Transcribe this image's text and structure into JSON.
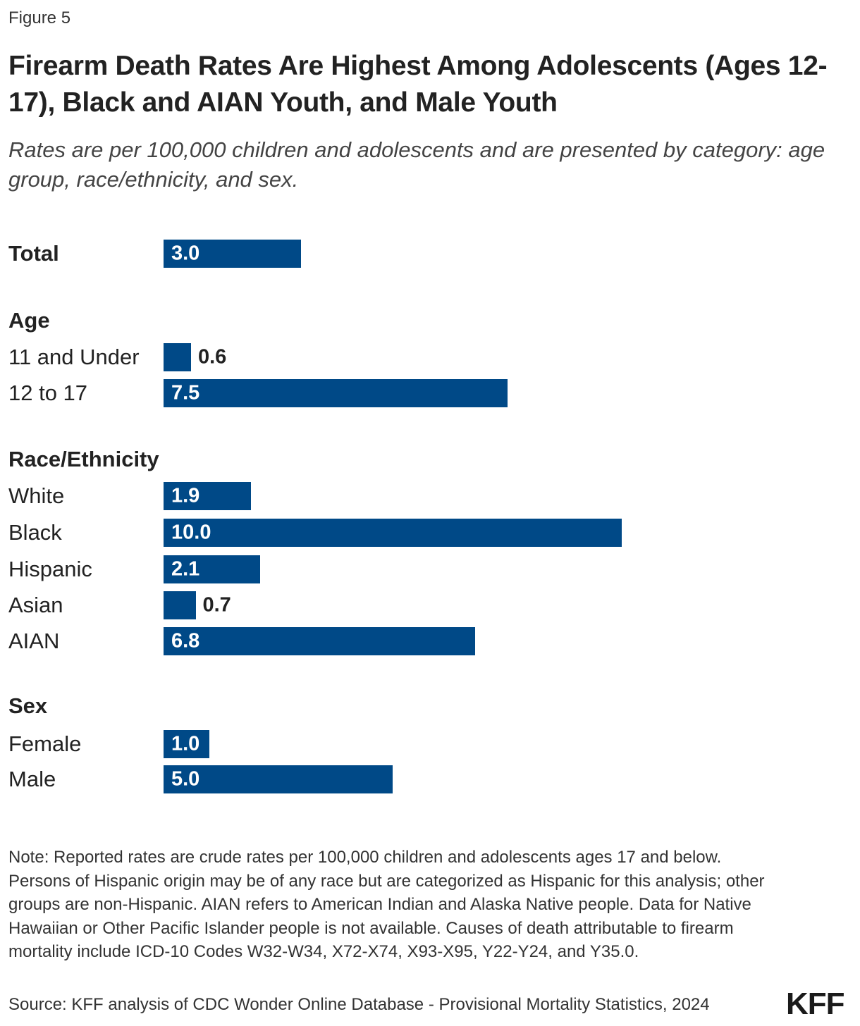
{
  "figure_label": "Figure 5",
  "title": "Firearm Death Rates Are Highest Among Adolescents (Ages 12-17), Black and AIAN Youth, and Male Youth",
  "subtitle": "Rates are per 100,000 children and adolescents and are presented by category: age group, race/ethnicity, and sex.",
  "chart_data": {
    "type": "bar",
    "orientation": "horizontal",
    "bar_color": "#004987",
    "xlim": [
      0,
      10
    ],
    "grid": false,
    "groups": [
      {
        "header": "Total",
        "categories": [
          "Total"
        ],
        "values": [
          3.0
        ],
        "labels": [
          "3.0"
        ]
      },
      {
        "header": "Age",
        "categories": [
          "11 and Under",
          "12 to 17"
        ],
        "values": [
          0.6,
          7.5
        ],
        "labels": [
          "0.6",
          "7.5"
        ]
      },
      {
        "header": "Race/Ethnicity",
        "categories": [
          "White",
          "Black",
          "Hispanic",
          "Asian",
          "AIAN"
        ],
        "values": [
          1.9,
          10.0,
          2.1,
          0.7,
          6.8
        ],
        "labels": [
          "1.9",
          "10.0",
          "2.1",
          "0.7",
          "6.8"
        ]
      },
      {
        "header": "Sex",
        "categories": [
          "Female",
          "Male"
        ],
        "values": [
          1.0,
          5.0
        ],
        "labels": [
          "1.0",
          "5.0"
        ]
      }
    ]
  },
  "note": "Note: Reported rates are crude rates per 100,000 children and adolescents ages 17 and below. Persons of Hispanic origin may be of any race but are categorized as Hispanic for this analysis; other groups are non-Hispanic. AIAN refers to American Indian and Alaska Native people. Data for Native Hawaiian or Other Pacific Islander people is not available. Causes of death attributable to firearm mortality include ICD-10 Codes W32-W34, X72-X74, X93-X95, Y22-Y24, and Y35.0.",
  "source": "Source: KFF analysis of CDC Wonder Online Database - Provisional Mortality Statistics, 2024",
  "logo_text": "KFF"
}
